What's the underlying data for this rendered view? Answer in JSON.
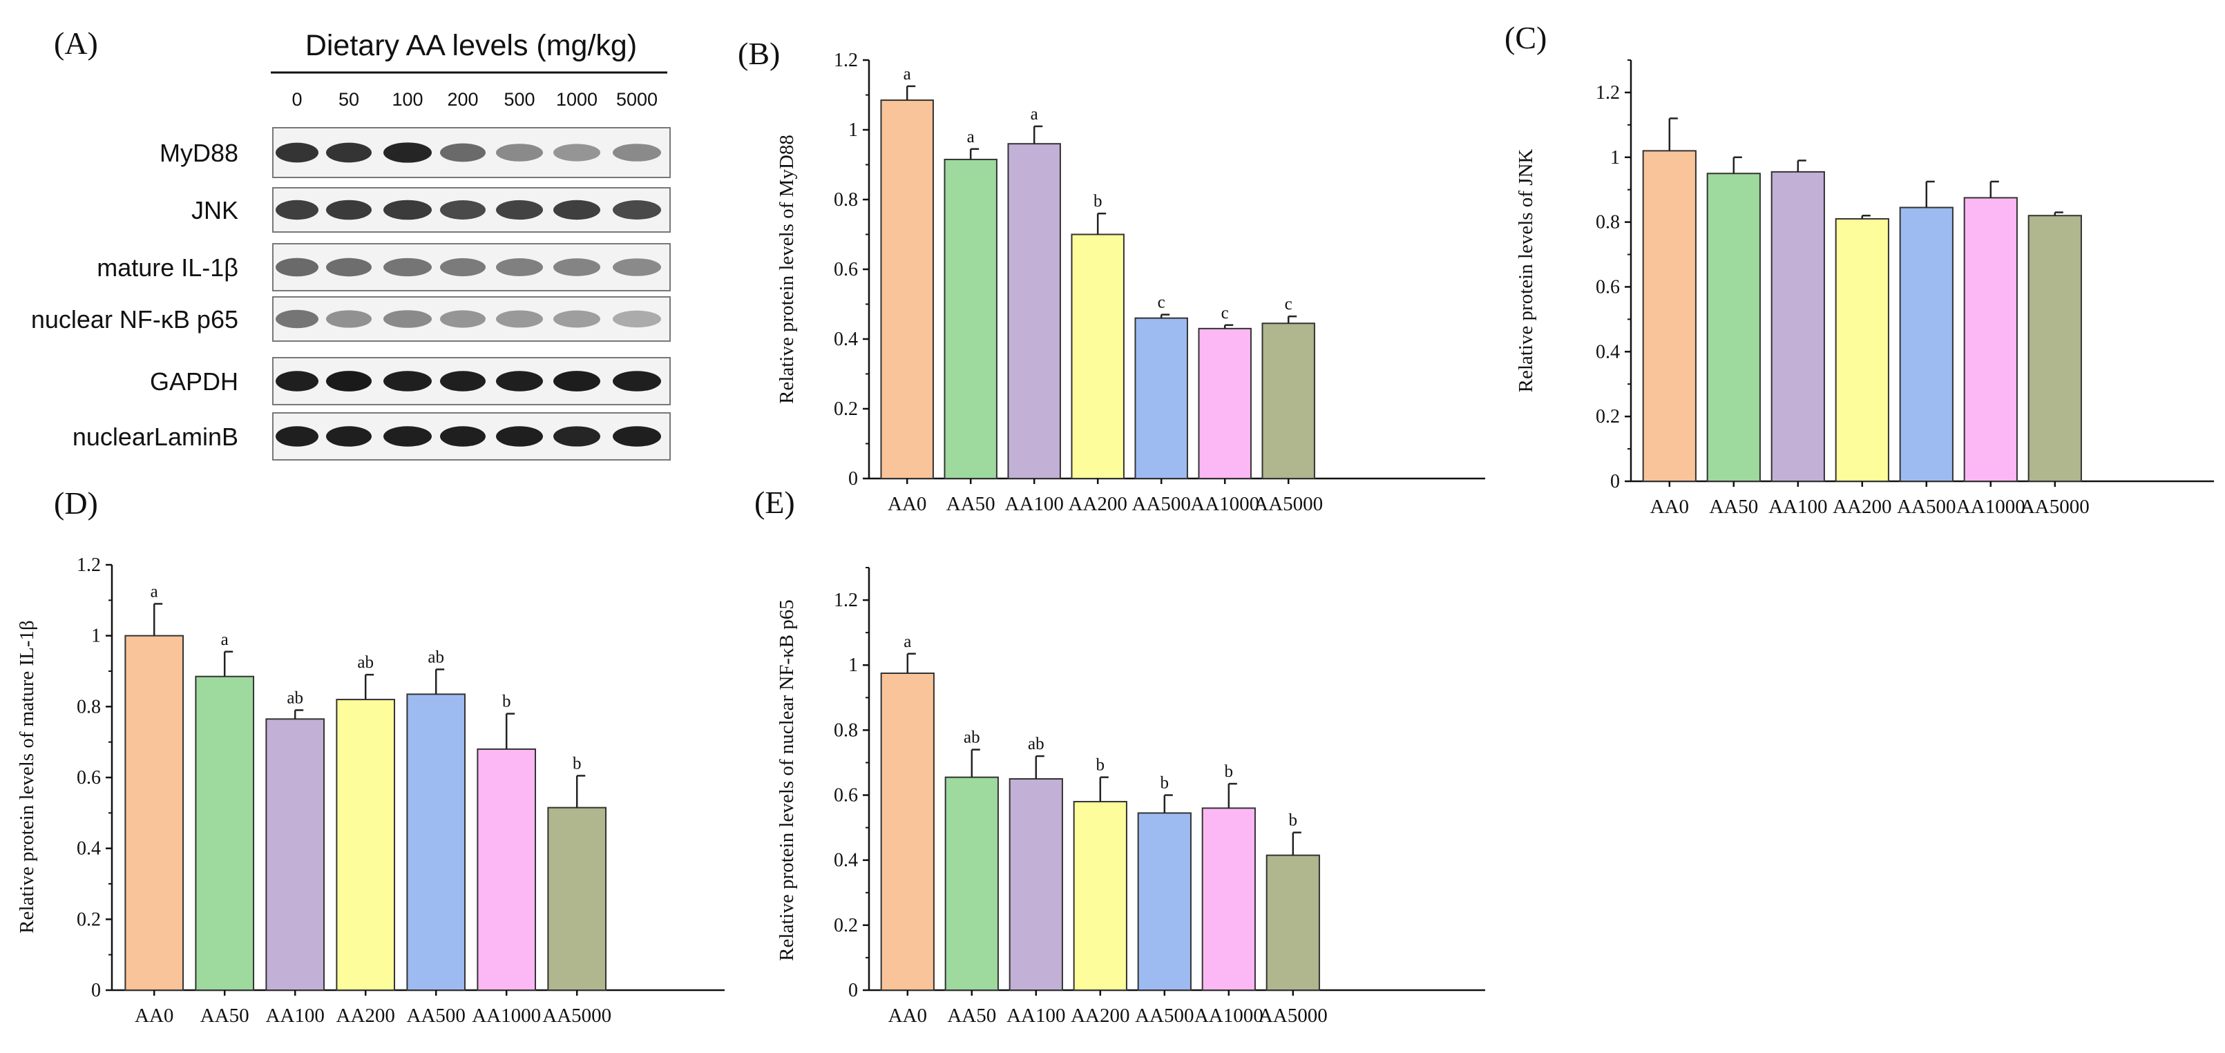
{
  "figure": {
    "panels_labels": [
      "(A)",
      "(B)",
      "(C)",
      "(D)",
      "(E)"
    ]
  },
  "western_blot": {
    "label": "(A)",
    "title": "Dietary AA levels (mg/kg)",
    "doses": [
      "0",
      "50",
      "100",
      "200",
      "500",
      "1000",
      "5000"
    ],
    "proteins": [
      "MyD88",
      "JNK",
      "mature IL-1β",
      "nuclear NF-κB p65",
      "GAPDH",
      "nuclearLaminB"
    ]
  },
  "colors": [
    "#f9c499",
    "#9ed99e",
    "#c2b0d6",
    "#fdfd9c",
    "#9dbbf1",
    "#fcb8f5",
    "#b0b68d"
  ],
  "chart_data": [
    {
      "panel": "(B)",
      "type": "bar",
      "categories": [
        "AA0",
        "AA50",
        "AA100",
        "AA200",
        "AA500",
        "AA1000",
        "AA5000"
      ],
      "values": [
        1.085,
        0.915,
        0.96,
        0.7,
        0.46,
        0.43,
        0.445
      ],
      "errors": [
        0.04,
        0.03,
        0.05,
        0.06,
        0.01,
        0.01,
        0.02
      ],
      "labels": [
        "a",
        "a",
        "a",
        "b",
        "c",
        "c",
        "c"
      ],
      "ylabel": "Relative protein levels of MyD88",
      "xlabel": "",
      "ylim": [
        0,
        1.2
      ],
      "yticks": [
        "0",
        "0.2",
        "0.4",
        "0.6",
        "0.8",
        "1",
        "1.2"
      ]
    },
    {
      "panel": "(C)",
      "type": "bar",
      "categories": [
        "AA0",
        "AA50",
        "AA100",
        "AA200",
        "AA500",
        "AA1000",
        "AA5000"
      ],
      "values": [
        1.02,
        0.95,
        0.955,
        0.81,
        0.845,
        0.875,
        0.82
      ],
      "errors": [
        0.1,
        0.05,
        0.035,
        0.01,
        0.08,
        0.05,
        0.01
      ],
      "labels": [
        "",
        "",
        "",
        "",
        "",
        "",
        ""
      ],
      "ylabel": "Relative protein levels of JNK",
      "xlabel": "",
      "ylim": [
        0,
        1.3
      ],
      "yticks": [
        "0",
        "0.2",
        "0.4",
        "0.6",
        "0.8",
        "1",
        "1.2"
      ]
    },
    {
      "panel": "(D)",
      "type": "bar",
      "categories": [
        "AA0",
        "AA50",
        "AA100",
        "AA200",
        "AA500",
        "AA1000",
        "AA5000"
      ],
      "values": [
        1.0,
        0.885,
        0.765,
        0.82,
        0.835,
        0.68,
        0.515
      ],
      "errors": [
        0.09,
        0.07,
        0.025,
        0.07,
        0.07,
        0.1,
        0.09
      ],
      "labels": [
        "a",
        "a",
        "ab",
        "ab",
        "ab",
        "b",
        "b"
      ],
      "ylabel": "Relative protein levels of mature IL-1β",
      "xlabel": "",
      "ylim": [
        0,
        1.2
      ],
      "yticks": [
        "0",
        "0.2",
        "0.4",
        "0.6",
        "0.8",
        "1",
        "1.2"
      ]
    },
    {
      "panel": "(E)",
      "type": "bar",
      "categories": [
        "AA0",
        "AA50",
        "AA100",
        "AA200",
        "AA500",
        "AA1000",
        "AA5000"
      ],
      "values": [
        0.975,
        0.655,
        0.65,
        0.58,
        0.545,
        0.56,
        0.415
      ],
      "errors": [
        0.06,
        0.085,
        0.07,
        0.075,
        0.055,
        0.075,
        0.07
      ],
      "labels": [
        "a",
        "ab",
        "ab",
        "b",
        "b",
        "b",
        "b"
      ],
      "ylabel": "Relative protein levels of nuclear NF-κB p65",
      "xlabel": "",
      "ylim": [
        0,
        1.3
      ],
      "yticks": [
        "0",
        "0.2",
        "0.4",
        "0.6",
        "0.8",
        "1",
        "1.2"
      ]
    }
  ]
}
